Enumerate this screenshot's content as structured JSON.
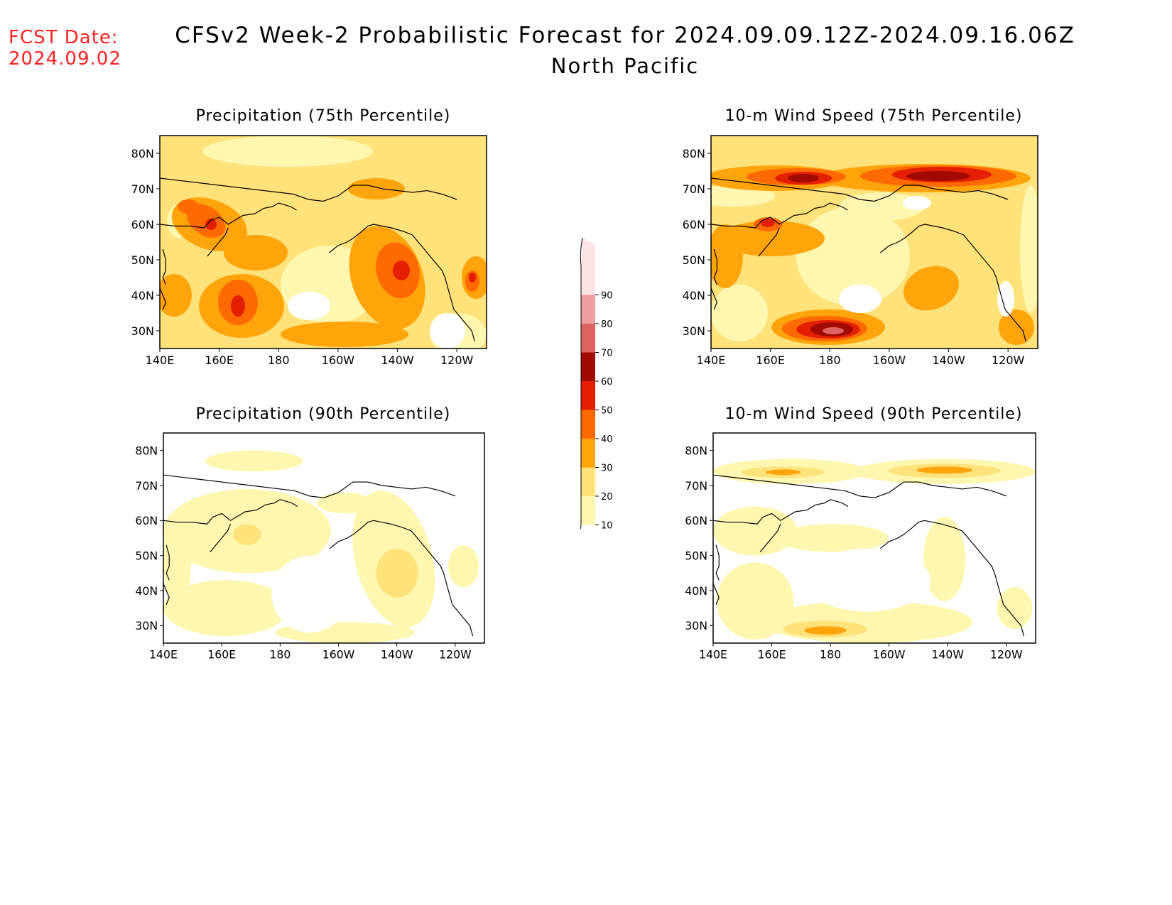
{
  "fcst_label": "FCST Date:",
  "fcst_date": "2024.09.02",
  "title": "CFSv2 Week-2 Probabilistic Forecast for 2024.09.09.12Z-2024.09.16.06Z",
  "subtitle": "North Pacific",
  "x_ticks": [
    "140E",
    "160E",
    "180",
    "160W",
    "140W",
    "120W"
  ],
  "y_ticks": [
    "80N",
    "70N",
    "60N",
    "50N",
    "40N",
    "30N"
  ],
  "panels": [
    {
      "id": "precip75",
      "title": "Precipitation (75th Percentile)"
    },
    {
      "id": "wind75",
      "title": "10-m Wind Speed (75th Percentile)"
    },
    {
      "id": "precip90",
      "title": "Precipitation (90th Percentile)"
    },
    {
      "id": "wind90",
      "title": "10-m Wind Speed (90th Percentile)"
    }
  ],
  "colorbar": {
    "levels": [
      "10",
      "20",
      "30",
      "40",
      "50",
      "60",
      "70",
      "80",
      "90"
    ],
    "colors": [
      "#fff7b0",
      "#ffe27a",
      "#ffa40a",
      "#ff6a00",
      "#e41e00",
      "#a00a00",
      "#de6464",
      "#f09fa0",
      "#fde3e6"
    ]
  },
  "palette": {
    "lightyellow": "#fff7b0",
    "yellow": "#ffe27a",
    "orange": "#ffa40a",
    "darkorange": "#ff6a00",
    "red": "#e41e00",
    "darkred": "#a00a00",
    "pink": "#de6464"
  }
}
